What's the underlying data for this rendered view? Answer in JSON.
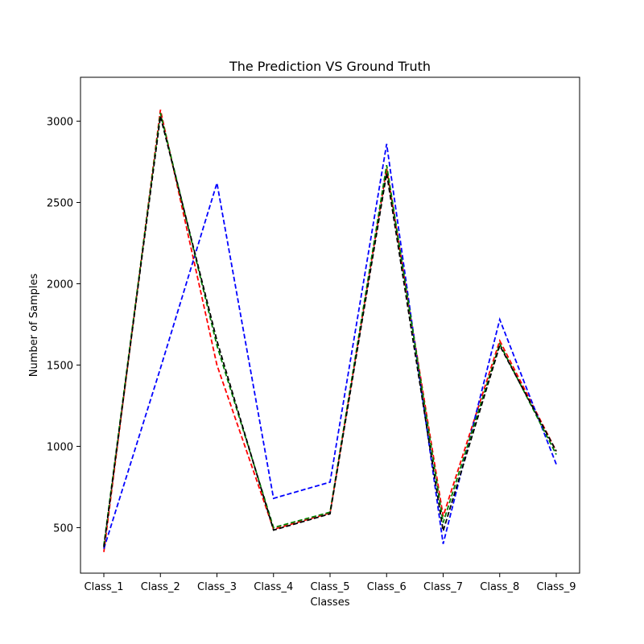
{
  "chart_data": {
    "type": "line",
    "title": "The Prediction VS Ground Truth",
    "xlabel": "Classes",
    "ylabel": "Number of Samples",
    "categories": [
      "Class_1",
      "Class_2",
      "Class_3",
      "Class_4",
      "Class_5",
      "Class_6",
      "Class_7",
      "Class_8",
      "Class_9"
    ],
    "ylim": [
      220,
      3270
    ],
    "yticks": [
      500,
      1000,
      1500,
      2000,
      2500,
      3000
    ],
    "grid": false,
    "legend": "none",
    "series": [
      {
        "color": "#ff0000",
        "line_style": "dashed",
        "values": [
          350,
          3070,
          1500,
          490,
          590,
          2710,
          570,
          1650,
          970
        ]
      },
      {
        "color": "#0000ff",
        "line_style": "dashed",
        "values": [
          370,
          1480,
          2620,
          680,
          780,
          2860,
          400,
          1780,
          890
        ]
      },
      {
        "color": "#008000",
        "line_style": "dashed",
        "values": [
          390,
          3050,
          1620,
          500,
          595,
          2730,
          530,
          1630,
          950
        ]
      },
      {
        "color": "#000000",
        "line_style": "dashed",
        "values": [
          380,
          3030,
          1650,
          485,
          585,
          2680,
          480,
          1620,
          970
        ]
      }
    ]
  }
}
